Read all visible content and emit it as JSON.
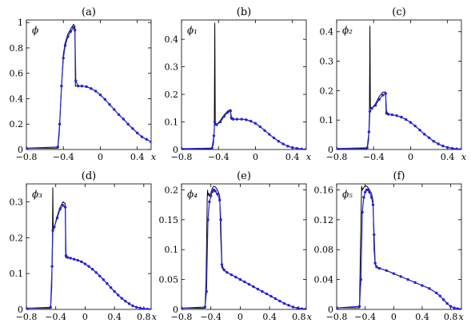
{
  "chart_data": [
    {
      "type": "line",
      "title": "(a)",
      "label": "ϕ",
      "xlabel": "x",
      "xlim": [
        -0.8,
        0.55
      ],
      "ylim": [
        0,
        1.02
      ],
      "xticks": [
        -0.8,
        -0.4,
        0,
        0.4
      ],
      "xtick_labels": [
        "−0.8",
        "−0.4",
        "0",
        "0.4"
      ],
      "yticks": [
        0,
        0.2,
        0.4,
        0.6,
        0.8,
        1
      ],
      "ytick_labels": [
        "0",
        "0.2",
        "0.4",
        "0.6",
        "0.8",
        "1"
      ],
      "series": [
        {
          "color": "#000000",
          "style": "line",
          "x": [
            -0.8,
            -0.46,
            -0.445,
            -0.42,
            -0.4,
            -0.38,
            -0.35,
            -0.32,
            -0.29,
            -0.275,
            -0.27,
            -0.24,
            -0.2,
            -0.15,
            -0.1,
            -0.05,
            0,
            0.05,
            0.1,
            0.15,
            0.2,
            0.25,
            0.3,
            0.35,
            0.4,
            0.45,
            0.5,
            0.55
          ],
          "y": [
            0.01,
            0.01,
            0.12,
            0.5,
            0.75,
            0.84,
            0.91,
            0.95,
            0.985,
            0.97,
            0.5,
            0.5,
            0.5,
            0.495,
            0.48,
            0.46,
            0.43,
            0.395,
            0.355,
            0.315,
            0.275,
            0.24,
            0.2,
            0.165,
            0.13,
            0.1,
            0.08,
            0.06
          ]
        },
        {
          "color": "#2222dd",
          "style": "markers",
          "x": [
            -0.8,
            -0.46,
            -0.44,
            -0.42,
            -0.4,
            -0.38,
            -0.35,
            -0.32,
            -0.29,
            -0.275,
            -0.265,
            -0.24,
            -0.2,
            -0.15,
            -0.1,
            -0.05,
            0,
            0.05,
            0.1,
            0.15,
            0.2,
            0.25,
            0.3,
            0.35,
            0.4,
            0.45,
            0.5,
            0.55
          ],
          "y": [
            0.01,
            0.02,
            0.2,
            0.5,
            0.72,
            0.82,
            0.89,
            0.93,
            0.96,
            0.94,
            0.54,
            0.5,
            0.5,
            0.495,
            0.48,
            0.46,
            0.43,
            0.395,
            0.355,
            0.315,
            0.275,
            0.24,
            0.2,
            0.165,
            0.13,
            0.1,
            0.08,
            0.06
          ]
        }
      ]
    },
    {
      "type": "line",
      "title": "(b)",
      "label": "ϕ₁",
      "xlabel": "x",
      "xlim": [
        -0.8,
        0.55
      ],
      "ylim": [
        0,
        0.47
      ],
      "xticks": [
        -0.8,
        -0.4,
        0,
        0.4
      ],
      "xtick_labels": [
        "−0.8",
        "−0.4",
        "0",
        "0.4"
      ],
      "yticks": [
        0,
        0.1,
        0.2,
        0.3,
        0.4
      ],
      "ytick_labels": [
        "0",
        "0.1",
        "0.2",
        "0.3",
        "0.4"
      ],
      "series": [
        {
          "color": "#000000",
          "style": "line",
          "x": [
            -0.8,
            -0.47,
            -0.455,
            -0.445,
            -0.44,
            -0.435,
            -0.42,
            -0.38,
            -0.34,
            -0.3,
            -0.27,
            -0.265,
            -0.24,
            -0.2,
            -0.15,
            -0.1,
            -0.05,
            0,
            0.05,
            0.1,
            0.15,
            0.2,
            0.25,
            0.3,
            0.35,
            0.4,
            0.45,
            0.5,
            0.55
          ],
          "y": [
            0.003,
            0.003,
            0.02,
            0.08,
            0.46,
            0.09,
            0.09,
            0.105,
            0.125,
            0.14,
            0.145,
            0.11,
            0.11,
            0.11,
            0.11,
            0.108,
            0.103,
            0.095,
            0.083,
            0.069,
            0.055,
            0.042,
            0.03,
            0.02,
            0.012,
            0.007,
            0.004,
            0.002,
            0.001
          ]
        },
        {
          "color": "#2222dd",
          "style": "markers",
          "x": [
            -0.8,
            -0.47,
            -0.45,
            -0.44,
            -0.42,
            -0.38,
            -0.34,
            -0.3,
            -0.27,
            -0.26,
            -0.24,
            -0.2,
            -0.15,
            -0.1,
            -0.05,
            0,
            0.05,
            0.1,
            0.15,
            0.2,
            0.25,
            0.3,
            0.35,
            0.4,
            0.45,
            0.5,
            0.55
          ],
          "y": [
            0.003,
            0.005,
            0.05,
            0.1,
            0.09,
            0.1,
            0.12,
            0.135,
            0.14,
            0.115,
            0.11,
            0.11,
            0.11,
            0.108,
            0.103,
            0.095,
            0.083,
            0.069,
            0.055,
            0.042,
            0.03,
            0.02,
            0.012,
            0.007,
            0.004,
            0.002,
            0.001
          ]
        }
      ]
    },
    {
      "type": "line",
      "title": "(c)",
      "label": "ϕ₂",
      "xlabel": "x",
      "xlim": [
        -0.8,
        0.55
      ],
      "ylim": [
        0,
        0.44
      ],
      "xticks": [
        -0.8,
        -0.4,
        0,
        0.4
      ],
      "xtick_labels": [
        "−0.8",
        "−0.4",
        "0",
        "0.4"
      ],
      "yticks": [
        0,
        0.1,
        0.2,
        0.3,
        0.4
      ],
      "ytick_labels": [
        "0",
        "0.1",
        "0.2",
        "0.3",
        "0.4"
      ],
      "series": [
        {
          "color": "#000000",
          "style": "line",
          "x": [
            -0.8,
            -0.47,
            -0.455,
            -0.445,
            -0.44,
            -0.435,
            -0.42,
            -0.38,
            -0.34,
            -0.3,
            -0.27,
            -0.265,
            -0.24,
            -0.2,
            -0.15,
            -0.1,
            -0.05,
            0,
            0.05,
            0.1,
            0.15,
            0.2,
            0.25,
            0.3,
            0.35,
            0.4,
            0.45,
            0.5,
            0.55
          ],
          "y": [
            0.003,
            0.003,
            0.03,
            0.12,
            0.42,
            0.14,
            0.14,
            0.155,
            0.18,
            0.195,
            0.195,
            0.12,
            0.12,
            0.118,
            0.115,
            0.11,
            0.102,
            0.092,
            0.08,
            0.066,
            0.052,
            0.04,
            0.028,
            0.019,
            0.012,
            0.007,
            0.004,
            0.002,
            0.001
          ]
        },
        {
          "color": "#2222dd",
          "style": "markers",
          "x": [
            -0.8,
            -0.47,
            -0.45,
            -0.44,
            -0.42,
            -0.38,
            -0.34,
            -0.3,
            -0.27,
            -0.26,
            -0.24,
            -0.2,
            -0.15,
            -0.1,
            -0.05,
            0,
            0.05,
            0.1,
            0.15,
            0.2,
            0.25,
            0.3,
            0.35,
            0.4,
            0.45,
            0.5,
            0.55
          ],
          "y": [
            0.003,
            0.006,
            0.06,
            0.13,
            0.14,
            0.15,
            0.17,
            0.185,
            0.19,
            0.125,
            0.12,
            0.118,
            0.115,
            0.11,
            0.102,
            0.092,
            0.08,
            0.066,
            0.052,
            0.04,
            0.028,
            0.019,
            0.012,
            0.007,
            0.004,
            0.002,
            0.001
          ]
        }
      ]
    },
    {
      "type": "line",
      "title": "(d)",
      "label": "ϕ₃",
      "xlabel": "x",
      "xlim": [
        -0.8,
        0.9
      ],
      "ylim": [
        0,
        0.35
      ],
      "xticks": [
        -0.8,
        -0.4,
        0,
        0.4,
        0.8
      ],
      "xtick_labels": [
        "−0.8",
        "−0.4",
        "0",
        "0.4",
        "0.8"
      ],
      "yticks": [
        0,
        0.1,
        0.2,
        0.3
      ],
      "ytick_labels": [
        "0",
        "0.1",
        "0.2",
        "0.3"
      ],
      "series": [
        {
          "color": "#000000",
          "style": "line",
          "x": [
            -0.8,
            -0.47,
            -0.455,
            -0.445,
            -0.44,
            -0.435,
            -0.42,
            -0.38,
            -0.34,
            -0.3,
            -0.27,
            -0.265,
            -0.24,
            -0.2,
            -0.15,
            -0.1,
            -0.05,
            0,
            0.05,
            0.1,
            0.15,
            0.2,
            0.25,
            0.3,
            0.35,
            0.4,
            0.45,
            0.5,
            0.55,
            0.6,
            0.65,
            0.7,
            0.75,
            0.8,
            0.85,
            0.9
          ],
          "y": [
            0.003,
            0.003,
            0.06,
            0.2,
            0.34,
            0.22,
            0.23,
            0.26,
            0.285,
            0.3,
            0.295,
            0.145,
            0.145,
            0.143,
            0.14,
            0.137,
            0.133,
            0.127,
            0.12,
            0.112,
            0.103,
            0.093,
            0.083,
            0.072,
            0.061,
            0.05,
            0.04,
            0.031,
            0.023,
            0.016,
            0.01,
            0.006,
            0.004,
            0.002,
            0.001,
            0.001
          ]
        },
        {
          "color": "#2222dd",
          "style": "markers",
          "x": [
            -0.8,
            -0.47,
            -0.45,
            -0.44,
            -0.42,
            -0.38,
            -0.34,
            -0.3,
            -0.27,
            -0.26,
            -0.24,
            -0.2,
            -0.15,
            -0.1,
            -0.05,
            0,
            0.05,
            0.1,
            0.15,
            0.2,
            0.25,
            0.3,
            0.35,
            0.4,
            0.45,
            0.5,
            0.55,
            0.6,
            0.65,
            0.7,
            0.75,
            0.8,
            0.85,
            0.9
          ],
          "y": [
            0.003,
            0.006,
            0.12,
            0.22,
            0.23,
            0.255,
            0.28,
            0.29,
            0.285,
            0.15,
            0.145,
            0.143,
            0.14,
            0.137,
            0.133,
            0.127,
            0.12,
            0.112,
            0.103,
            0.093,
            0.083,
            0.072,
            0.061,
            0.05,
            0.04,
            0.031,
            0.023,
            0.016,
            0.01,
            0.006,
            0.004,
            0.002,
            0.001,
            0.001
          ]
        }
      ]
    },
    {
      "type": "line",
      "title": "(e)",
      "label": "ϕ₄",
      "xlabel": "x",
      "xlim": [
        -0.8,
        0.9
      ],
      "ylim": [
        0,
        0.21
      ],
      "xticks": [
        -0.8,
        -0.4,
        0,
        0.4,
        0.8
      ],
      "xtick_labels": [
        "−0.8",
        "−0.4",
        "0",
        "0.4",
        "0.8"
      ],
      "yticks": [
        0,
        0.05,
        0.1,
        0.15,
        0.2
      ],
      "ytick_labels": [
        "0",
        "0.05",
        "0.1",
        "0.15",
        "0.2"
      ],
      "series": [
        {
          "color": "#000000",
          "style": "line",
          "x": [
            -0.8,
            -0.48,
            -0.465,
            -0.45,
            -0.445,
            -0.44,
            -0.435,
            -0.42,
            -0.4,
            -0.38,
            -0.36,
            -0.34,
            -0.31,
            -0.28,
            -0.265,
            -0.25,
            -0.22,
            -0.18,
            -0.12,
            -0.06,
            0,
            0.06,
            0.12,
            0.18,
            0.24,
            0.3,
            0.36,
            0.42,
            0.48,
            0.54,
            0.6,
            0.66,
            0.72,
            0.78,
            0.84,
            0.9
          ],
          "y": [
            0.002,
            0.002,
            0.05,
            0.185,
            0.2,
            0.19,
            0.195,
            0.19,
            0.195,
            0.203,
            0.206,
            0.205,
            0.2,
            0.19,
            0.12,
            0.07,
            0.065,
            0.062,
            0.058,
            0.054,
            0.05,
            0.046,
            0.042,
            0.038,
            0.034,
            0.03,
            0.026,
            0.022,
            0.018,
            0.014,
            0.01,
            0.007,
            0.004,
            0.002,
            0.001,
            0.001
          ]
        },
        {
          "color": "#2222dd",
          "style": "markers",
          "x": [
            -0.8,
            -0.48,
            -0.46,
            -0.44,
            -0.42,
            -0.4,
            -0.38,
            -0.36,
            -0.34,
            -0.31,
            -0.28,
            -0.265,
            -0.25,
            -0.22,
            -0.18,
            -0.12,
            -0.06,
            0,
            0.06,
            0.12,
            0.18,
            0.24,
            0.3,
            0.36,
            0.42,
            0.48,
            0.54,
            0.6,
            0.66,
            0.72,
            0.78,
            0.84,
            0.9
          ],
          "y": [
            0.002,
            0.004,
            0.03,
            0.15,
            0.18,
            0.19,
            0.197,
            0.2,
            0.198,
            0.193,
            0.183,
            0.15,
            0.075,
            0.066,
            0.062,
            0.058,
            0.054,
            0.05,
            0.046,
            0.042,
            0.038,
            0.034,
            0.03,
            0.026,
            0.022,
            0.018,
            0.014,
            0.01,
            0.007,
            0.004,
            0.002,
            0.001,
            0.001
          ]
        }
      ]
    },
    {
      "type": "line",
      "title": "(f)",
      "label": "ϕ₅",
      "xlabel": "x",
      "xlim": [
        -0.8,
        0.95
      ],
      "ylim": [
        0,
        0.168
      ],
      "xticks": [
        -0.8,
        -0.4,
        0,
        0.4,
        0.8
      ],
      "xtick_labels": [
        "−0.8",
        "−0.4",
        "0",
        "0.4",
        "0.8"
      ],
      "yticks": [
        0,
        0.04,
        0.08,
        0.12,
        0.16
      ],
      "ytick_labels": [
        "0",
        "0.04",
        "0.08",
        "0.12",
        "0.16"
      ],
      "series": [
        {
          "color": "#000000",
          "style": "line",
          "x": [
            -0.8,
            -0.48,
            -0.47,
            -0.455,
            -0.45,
            -0.44,
            -0.42,
            -0.4,
            -0.38,
            -0.36,
            -0.34,
            -0.31,
            -0.29,
            -0.275,
            -0.26,
            -0.24,
            -0.2,
            -0.1,
            0,
            0.1,
            0.2,
            0.3,
            0.4,
            0.5,
            0.6,
            0.65,
            0.7,
            0.75,
            0.8,
            0.85,
            0.9,
            0.95
          ],
          "y": [
            0.002,
            0.002,
            0.06,
            0.14,
            0.165,
            0.16,
            0.163,
            0.165,
            0.165,
            0.163,
            0.16,
            0.155,
            0.145,
            0.08,
            0.06,
            0.056,
            0.055,
            0.052,
            0.048,
            0.044,
            0.04,
            0.036,
            0.032,
            0.028,
            0.022,
            0.018,
            0.013,
            0.008,
            0.004,
            0.002,
            0.001,
            0.0005
          ]
        },
        {
          "color": "#2222dd",
          "style": "markers",
          "x": [
            -0.8,
            -0.48,
            -0.46,
            -0.44,
            -0.42,
            -0.4,
            -0.38,
            -0.36,
            -0.34,
            -0.31,
            -0.29,
            -0.275,
            -0.26,
            -0.24,
            -0.2,
            -0.1,
            0,
            0.1,
            0.2,
            0.3,
            0.4,
            0.5,
            0.6,
            0.65,
            0.7,
            0.75,
            0.8,
            0.85,
            0.9,
            0.95
          ],
          "y": [
            0.002,
            0.004,
            0.04,
            0.13,
            0.15,
            0.157,
            0.16,
            0.16,
            0.157,
            0.15,
            0.14,
            0.1,
            0.062,
            0.057,
            0.055,
            0.052,
            0.048,
            0.044,
            0.04,
            0.036,
            0.032,
            0.028,
            0.022,
            0.018,
            0.013,
            0.008,
            0.004,
            0.002,
            0.001,
            0.0005
          ]
        }
      ]
    }
  ]
}
